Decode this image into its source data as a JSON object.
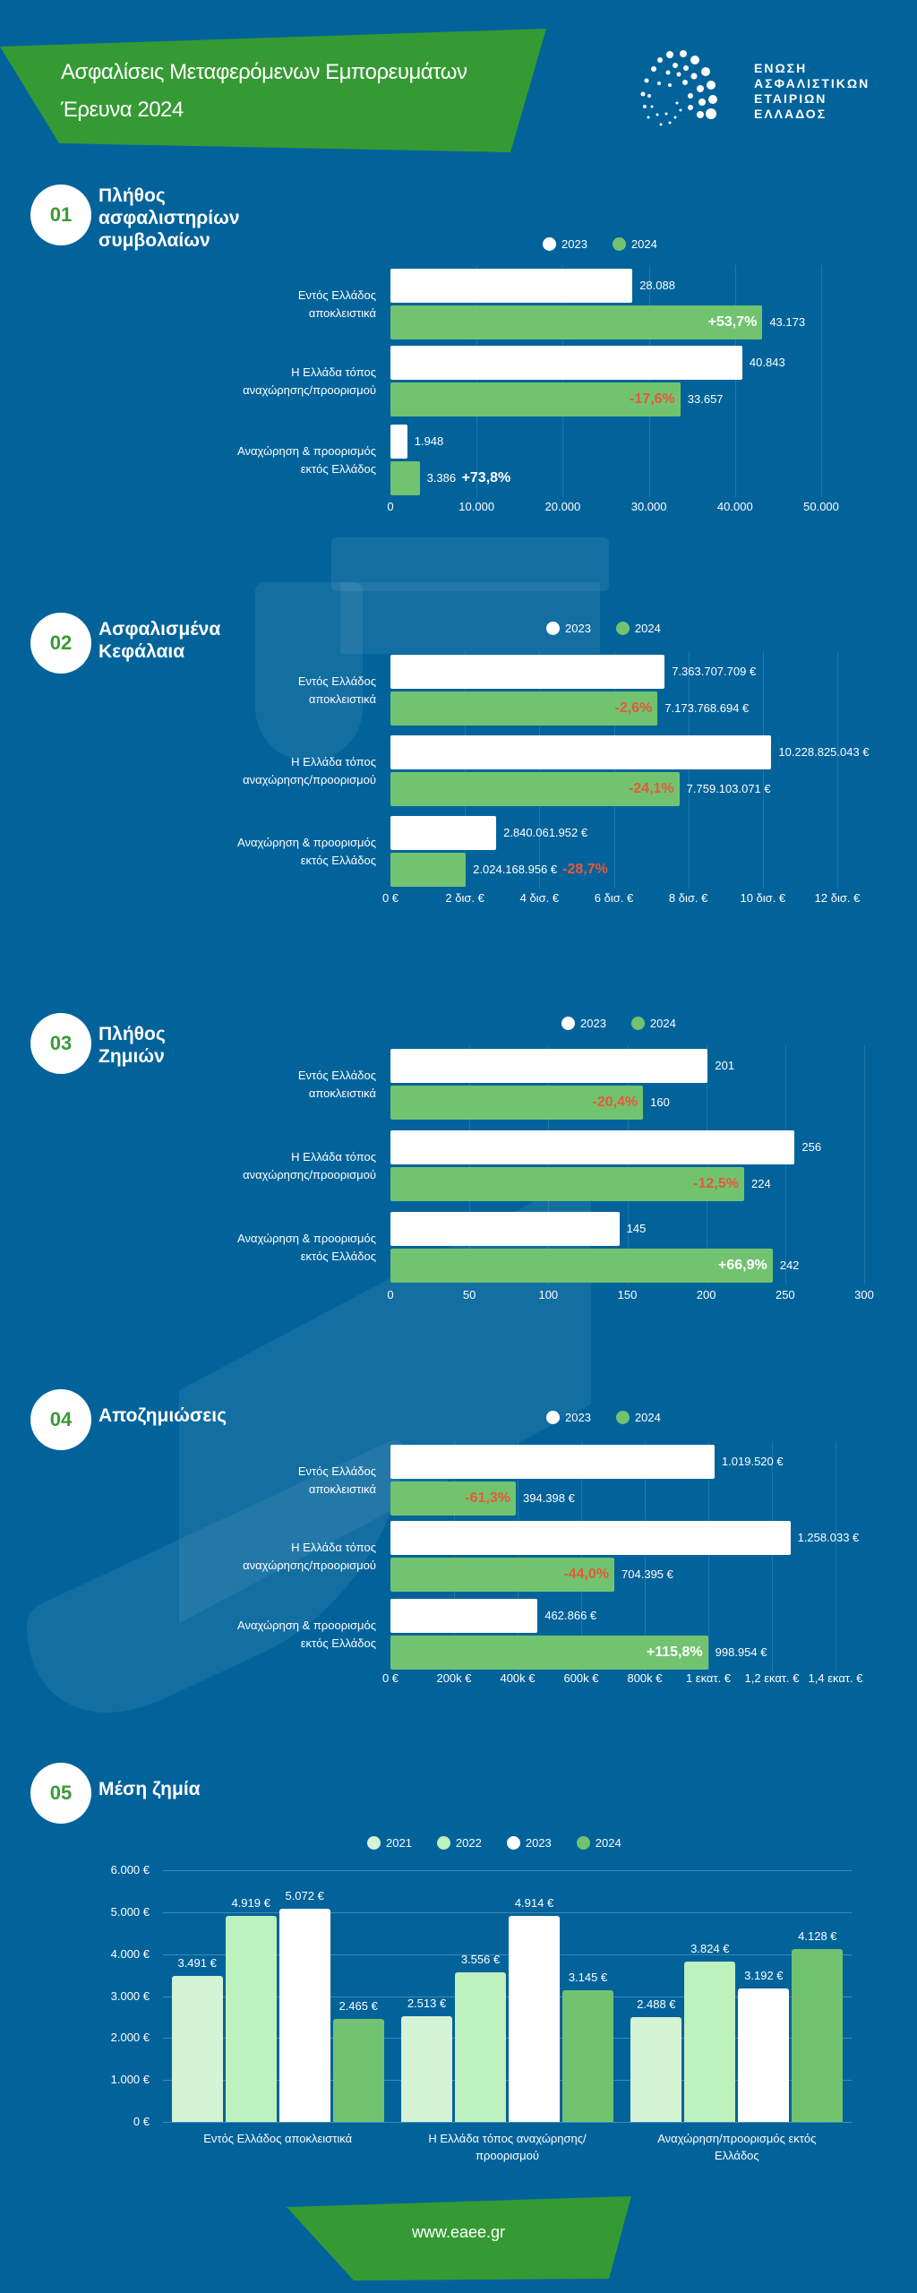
{
  "header": {
    "title_line1": "Ασφαλίσεις Μεταφερόμενων Εμπορευμάτων",
    "title_line2": "Έρευνα 2024",
    "logo_text": [
      "ΕΝΩΣΗ",
      "ΑΣΦΑΛΙΣΤΙΚΩΝ",
      "ΕΤΑΙΡΙΩΝ",
      "ΕΛΛΑΔΟΣ"
    ]
  },
  "colors": {
    "background": "#02639b",
    "banner_green": "#359a34",
    "bar_2021": "#d5f3d5",
    "bar_2022": "#bdf1bd",
    "bar_2023": "#ffffff",
    "bar_2024": "#72c36f",
    "negative_pct": "#e8583a",
    "positive_pct": "#ffffff"
  },
  "chart_data": [
    {
      "id": "01",
      "type": "bar",
      "orientation": "horizontal",
      "title": "Πλήθος ασφαλιστηρίων συμβολαίων",
      "title_lines": [
        "Πλήθος",
        "ασφαλιστηρίων",
        "συμβολαίων"
      ],
      "legend": [
        "2023",
        "2024"
      ],
      "legend_placement": "top",
      "categories": [
        [
          "Εντός Ελλάδος",
          "αποκλειστικά"
        ],
        [
          "Η Ελλάδα τόπος",
          "αναχώρησης/προορισμού"
        ],
        [
          "Αναχώρηση & προορισμός",
          "εκτός Ελλάδος"
        ]
      ],
      "series": [
        {
          "name": "2023",
          "values": [
            28088,
            40843,
            1948
          ],
          "labels": [
            "28.088",
            "40.843",
            "1.948"
          ]
        },
        {
          "name": "2024",
          "values": [
            43173,
            33657,
            3386
          ],
          "labels": [
            "43.173",
            "33.657",
            "3.386"
          ]
        }
      ],
      "change": [
        "+53,7%",
        "-17,6%",
        "+73,8%"
      ],
      "xlim": [
        0,
        50000
      ],
      "xticks": [
        "0",
        "10.000",
        "20.000",
        "30.000",
        "40.000",
        "50.000"
      ]
    },
    {
      "id": "02",
      "type": "bar",
      "orientation": "horizontal",
      "title": "Ασφαλισμένα Κεφάλαια",
      "title_lines": [
        "Ασφαλισμένα",
        "Κεφάλαια"
      ],
      "legend": [
        "2023",
        "2024"
      ],
      "legend_placement": "top",
      "categories": [
        [
          "Εντός Ελλάδος",
          "αποκλειστικά"
        ],
        [
          "Η Ελλάδα τόπος",
          "αναχώρησης/προορισμού"
        ],
        [
          "Αναχώρηση & προορισμός",
          "εκτός Ελλάδος"
        ]
      ],
      "series": [
        {
          "name": "2023",
          "values": [
            7363707709,
            10228825043,
            2840061952
          ],
          "labels": [
            "7.363.707.709 €",
            "10.228.825.043 €",
            "2.840.061.952 €"
          ]
        },
        {
          "name": "2024",
          "values": [
            7173768694,
            7759103071,
            2024168956
          ],
          "labels": [
            "7.173.768.694 €",
            "7.759.103.071 €",
            "2.024.168.956 €"
          ]
        }
      ],
      "change": [
        "-2,6%",
        "-24,1%",
        "-28,7%"
      ],
      "xlim": [
        0,
        12000000000
      ],
      "xticks": [
        "0 €",
        "2 δισ. €",
        "4 δισ. €",
        "6 δισ. €",
        "8 δισ. €",
        "10 δισ. €",
        "12 δισ. €"
      ]
    },
    {
      "id": "03",
      "type": "bar",
      "orientation": "horizontal",
      "title": "Πλήθος Ζημιών",
      "title_lines": [
        "Πλήθος",
        "Ζημιών"
      ],
      "legend": [
        "2023",
        "2024"
      ],
      "legend_placement": "top",
      "categories": [
        [
          "Εντός Ελλάδος",
          "αποκλειστικά"
        ],
        [
          "Η Ελλάδα τόπος",
          "αναχώρησης/προορισμού"
        ],
        [
          "Αναχώρηση & προορισμός",
          "εκτός Ελλάδος"
        ]
      ],
      "series": [
        {
          "name": "2023",
          "values": [
            201,
            256,
            145
          ],
          "labels": [
            "201",
            "256",
            "145"
          ]
        },
        {
          "name": "2024",
          "values": [
            160,
            224,
            242
          ],
          "labels": [
            "160",
            "224",
            "242"
          ]
        }
      ],
      "change": [
        "-20,4%",
        "-12,5%",
        "+66,9%"
      ],
      "xlim": [
        0,
        300
      ],
      "xticks": [
        "0",
        "50",
        "100",
        "150",
        "200",
        "250",
        "300"
      ]
    },
    {
      "id": "04",
      "type": "bar",
      "orientation": "horizontal",
      "title": "Αποζημιώσεις",
      "title_lines": [
        "Αποζημιώσεις"
      ],
      "legend": [
        "2023",
        "2024"
      ],
      "legend_placement": "top",
      "categories": [
        [
          "Εντός Ελλάδος",
          "αποκλειστικά"
        ],
        [
          "Η Ελλάδα τόπος",
          "αναχώρησης/προορισμού"
        ],
        [
          "Αναχώρηση & προορισμός",
          "εκτός Ελλάδος"
        ]
      ],
      "series": [
        {
          "name": "2023",
          "values": [
            1019520,
            1258033,
            462866
          ],
          "labels": [
            "1.019.520 €",
            "1.258.033 €",
            "462.866 €"
          ]
        },
        {
          "name": "2024",
          "values": [
            394398,
            704395,
            998954
          ],
          "labels": [
            "394.398 €",
            "704.395 €",
            "998.954 €"
          ]
        }
      ],
      "change": [
        "-61,3%",
        "-44,0%",
        "+115,8%"
      ],
      "xlim": [
        0,
        1400000
      ],
      "xticks": [
        "0 €",
        "200k €",
        "400k €",
        "600k €",
        "800k €",
        "1 εκατ. €",
        "1,2 εκατ. €",
        "1,4 εκατ. €"
      ]
    },
    {
      "id": "05",
      "type": "bar",
      "orientation": "vertical",
      "title": "Μέση ζημία",
      "title_lines": [
        "Μέση ζημία"
      ],
      "legend": [
        "2021",
        "2022",
        "2023",
        "2024"
      ],
      "legend_placement": "top",
      "categories": [
        [
          "Εντός Ελλάδος αποκλειστικά"
        ],
        [
          "Η Ελλάδα τόπος αναχώρησης/",
          "προορισμού"
        ],
        [
          "Αναχώρηση/προορισμός εκτός",
          "Ελλάδος"
        ]
      ],
      "series": [
        {
          "name": "2021",
          "values": [
            3491,
            2513,
            2488
          ],
          "labels": [
            "3.491 €",
            "2.513 €",
            "2.488 €"
          ]
        },
        {
          "name": "2022",
          "values": [
            4919,
            3556,
            3824
          ],
          "labels": [
            "4.919 €",
            "3.556 €",
            "3.824 €"
          ]
        },
        {
          "name": "2023",
          "values": [
            5072,
            4914,
            3192
          ],
          "labels": [
            "5.072 €",
            "4.914 €",
            "3.192 €"
          ]
        },
        {
          "name": "2024",
          "values": [
            2465,
            3145,
            4128
          ],
          "labels": [
            "2.465 €",
            "3.145 €",
            "4.128 €"
          ]
        }
      ],
      "ylim": [
        0,
        6000
      ],
      "yticks": [
        "0 €",
        "1.000 €",
        "2.000 €",
        "3.000 €",
        "4.000 €",
        "5.000 €",
        "6.000 €"
      ],
      "grid": true
    }
  ],
  "footer": {
    "url": "www.eaee.gr"
  }
}
